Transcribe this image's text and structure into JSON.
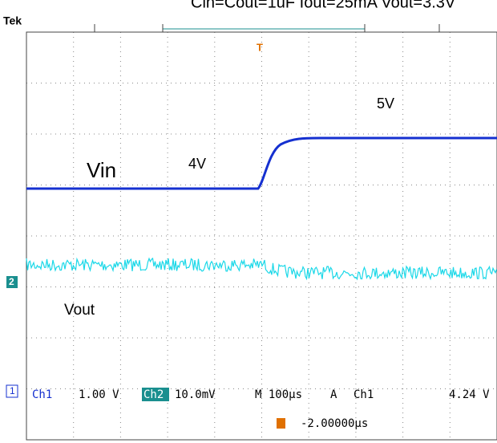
{
  "header": {
    "title": "Cin=Cout=1uF Iout=25mA Vout=3.3V",
    "brand": "Tek"
  },
  "labels": {
    "vin": "Vin",
    "vin_low": "4V",
    "vin_high": "5V",
    "vout": "Vout"
  },
  "markers": {
    "ch1": "1",
    "ch2": "2",
    "trigger": "T"
  },
  "status": {
    "ch1": "Ch1",
    "ch1_scale": "1.00 V",
    "ch2": "Ch2",
    "ch2_scale": "10.0mV",
    "timebase": "M 100µs",
    "trigger_mode": "A",
    "trigger_source": "Ch1",
    "trigger_level": "4.24 V",
    "position": "-2.00000µs"
  }
}
